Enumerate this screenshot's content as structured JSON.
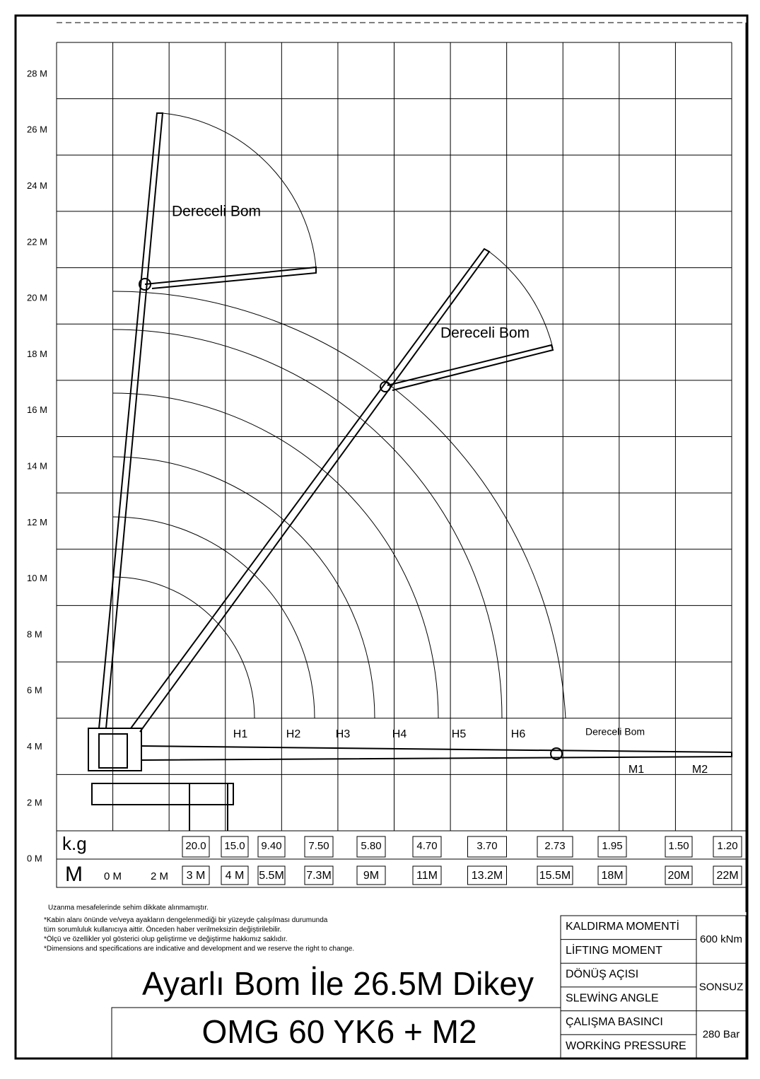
{
  "y_axis": [
    "28 M",
    "26 M",
    "24 M",
    "22 M",
    "20 M",
    "18 M",
    "16 M",
    "14 M",
    "12 M",
    "10 M",
    "8 M",
    "6 M",
    "4 M",
    "2 M",
    "0 M"
  ],
  "boom_labels": {
    "jib_vertical": "Dereceli Bom",
    "jib_angled": "Dereceli Bom",
    "jib_horizontal": "Dereceli Bom"
  },
  "extensions": [
    "H1",
    "H2",
    "H3",
    "H4",
    "H5",
    "H6",
    "M1",
    "M2"
  ],
  "load_table": {
    "kg_label": "k.g",
    "m_label": "M",
    "origin_labels": [
      "0 M",
      "2 M"
    ],
    "capacities": [
      "20.0",
      "15.0",
      "9.40",
      "7.50",
      "5.80",
      "4.70",
      "3.70",
      "2.73",
      "1.95",
      "1.50",
      "1.20"
    ],
    "distances": [
      "3 M",
      "4 M",
      "5.5M",
      "7.3M",
      "9M",
      "11M",
      "13.2M",
      "15.5M",
      "18M",
      "20M",
      "22M"
    ]
  },
  "notes": [
    "Uzanma mesafelerinde sehim dikkate alınmamıştır.",
    "*Kabin alanı önünde ve/veya ayakların dengelenmediği bir yüzeyde çalışılması durumunda",
    "tüm sorumluluk kullanıcıya aittir. Önceden haber verilmeksizin değiştirilebilir.",
    "*Ölçü ve özellikler yol gösterici olup geliştirme ve değiştirme hakkımız saklıdır.",
    "*Dimensions and specifications are indicative and development and we reserve the right to change."
  ],
  "title": "Ayarlı Bom İle 26.5M Dikey",
  "model": "OMG 60 YK6 + M2",
  "specs": [
    {
      "tr": "KALDIRMA MOMENTİ",
      "en": "LİFTING MOMENT",
      "value": "600 kNm"
    },
    {
      "tr": "DÖNÜŞ AÇISI",
      "en": "SLEWİNG ANGLE",
      "value": "SONSUZ"
    },
    {
      "tr": "ÇALIŞMA BASINCI",
      "en": "WORKİNG PRESSURE",
      "value": "280 Bar"
    }
  ]
}
